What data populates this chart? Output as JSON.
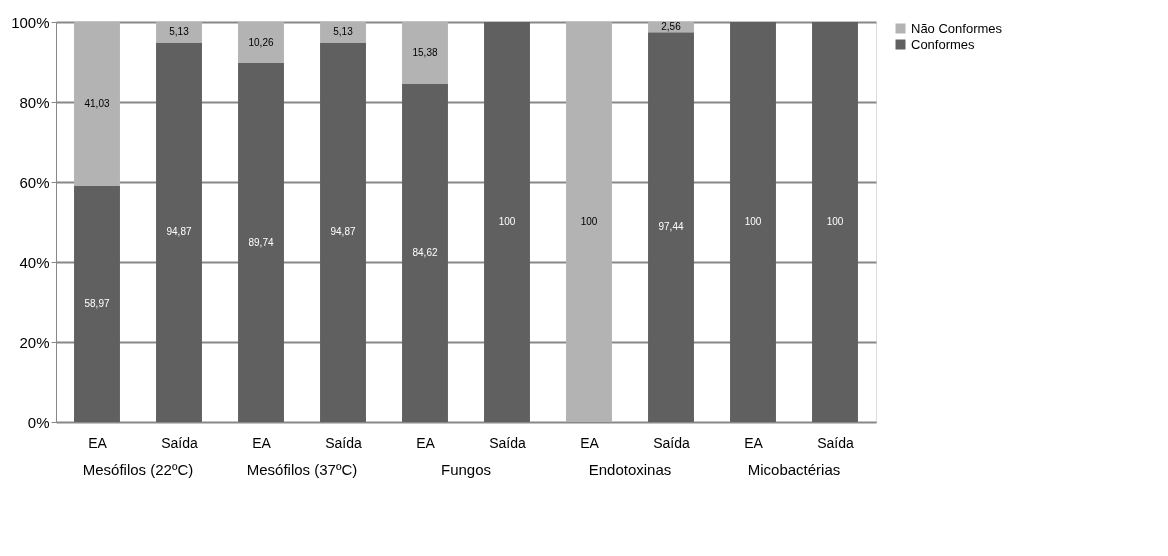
{
  "chart_data": {
    "type": "bar",
    "stacked": true,
    "categories": [
      "EA",
      "Saída",
      "EA",
      "Saída",
      "EA",
      "Saída",
      "EA",
      "Saída",
      "EA",
      "Saída"
    ],
    "series": [
      {
        "name": "Conformes",
        "color": "#606060",
        "values": [
          58.97,
          94.87,
          89.74,
          94.87,
          84.62,
          100,
          0,
          97.44,
          100,
          100
        ],
        "value_labels": [
          "58,97",
          "94,87",
          "89,74",
          "94,87",
          "84,62",
          "100",
          null,
          "97,44",
          "100",
          "100"
        ]
      },
      {
        "name": "Não Conformes",
        "color": "#b3b3b3",
        "values": [
          41.03,
          5.13,
          10.26,
          5.13,
          15.38,
          0,
          100,
          2.56,
          0,
          0
        ],
        "value_labels": [
          "41,03",
          "5,13",
          "10,26",
          "5,13",
          "15,38",
          null,
          "100",
          "2,56",
          null,
          null
        ]
      }
    ],
    "annotations": [
      "Mesófilos (22ºC)",
      "Mesófilos (37ºC)",
      "Fungos",
      "Endotoxinas",
      "Micobactérias"
    ],
    "ylim": [
      0,
      100
    ],
    "yticks": [
      {
        "value": 0,
        "label": "0%"
      },
      {
        "value": 20,
        "label": "20%"
      },
      {
        "value": 40,
        "label": "40%"
      },
      {
        "value": 60,
        "label": "60%"
      },
      {
        "value": 80,
        "label": "80%"
      },
      {
        "value": 100,
        "label": "100%"
      }
    ],
    "grid": "y",
    "legend": "right"
  }
}
